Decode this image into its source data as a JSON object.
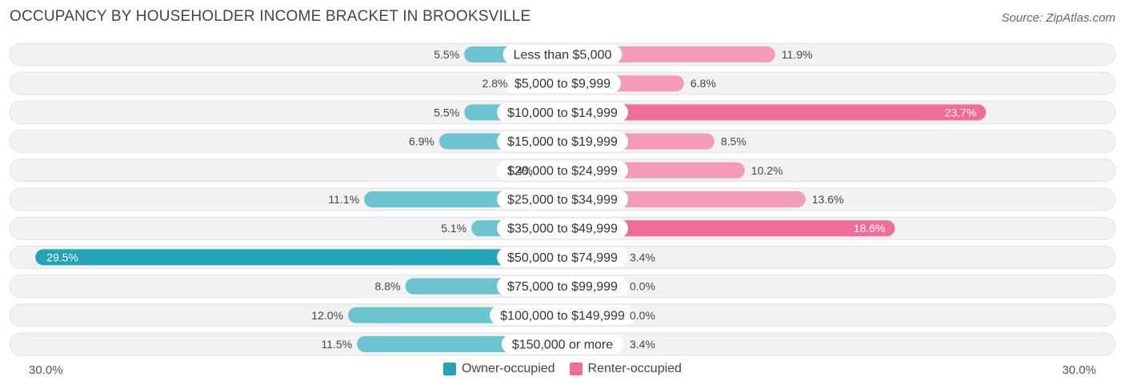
{
  "title": "OCCUPANCY BY HOUSEHOLDER INCOME BRACKET IN BROOKSVILLE",
  "source": "Source: ZipAtlas.com",
  "axis": {
    "left_label": "30.0%",
    "right_label": "30.0%"
  },
  "colors": {
    "owner": "#6cc4d1",
    "owner_strong": "#22a3b6",
    "renter": "#f59bb8",
    "renter_strong": "#f06d98",
    "row_bg": "#f1f1f1"
  },
  "legend": {
    "owner": "Owner-occupied",
    "renter": "Renter-occupied"
  },
  "chart_data": {
    "type": "bar",
    "orientation": "horizontal-diverging",
    "title": "OCCUPANCY BY HOUSEHOLDER INCOME BRACKET IN BROOKSVILLE",
    "xlim": [
      -30,
      30
    ],
    "categories": [
      "Less than $5,000",
      "$5,000 to $9,999",
      "$10,000 to $14,999",
      "$15,000 to $19,999",
      "$20,000 to $24,999",
      "$25,000 to $34,999",
      "$35,000 to $49,999",
      "$50,000 to $74,999",
      "$75,000 to $99,999",
      "$100,000 to $149,999",
      "$150,000 or more"
    ],
    "series": [
      {
        "name": "Owner-occupied",
        "values": [
          5.5,
          2.8,
          5.5,
          6.9,
          1.4,
          11.1,
          5.1,
          29.5,
          8.8,
          12.0,
          11.5
        ],
        "labels": [
          "5.5%",
          "2.8%",
          "5.5%",
          "6.9%",
          "1.4%",
          "11.1%",
          "5.1%",
          "29.5%",
          "8.8%",
          "12.0%",
          "11.5%"
        ]
      },
      {
        "name": "Renter-occupied",
        "values": [
          11.9,
          6.8,
          23.7,
          8.5,
          10.2,
          13.6,
          18.6,
          3.4,
          0.0,
          0.0,
          3.4
        ],
        "labels": [
          "11.9%",
          "6.8%",
          "23.7%",
          "8.5%",
          "10.2%",
          "13.6%",
          "18.6%",
          "3.4%",
          "0.0%",
          "0.0%",
          "3.4%"
        ]
      }
    ]
  }
}
